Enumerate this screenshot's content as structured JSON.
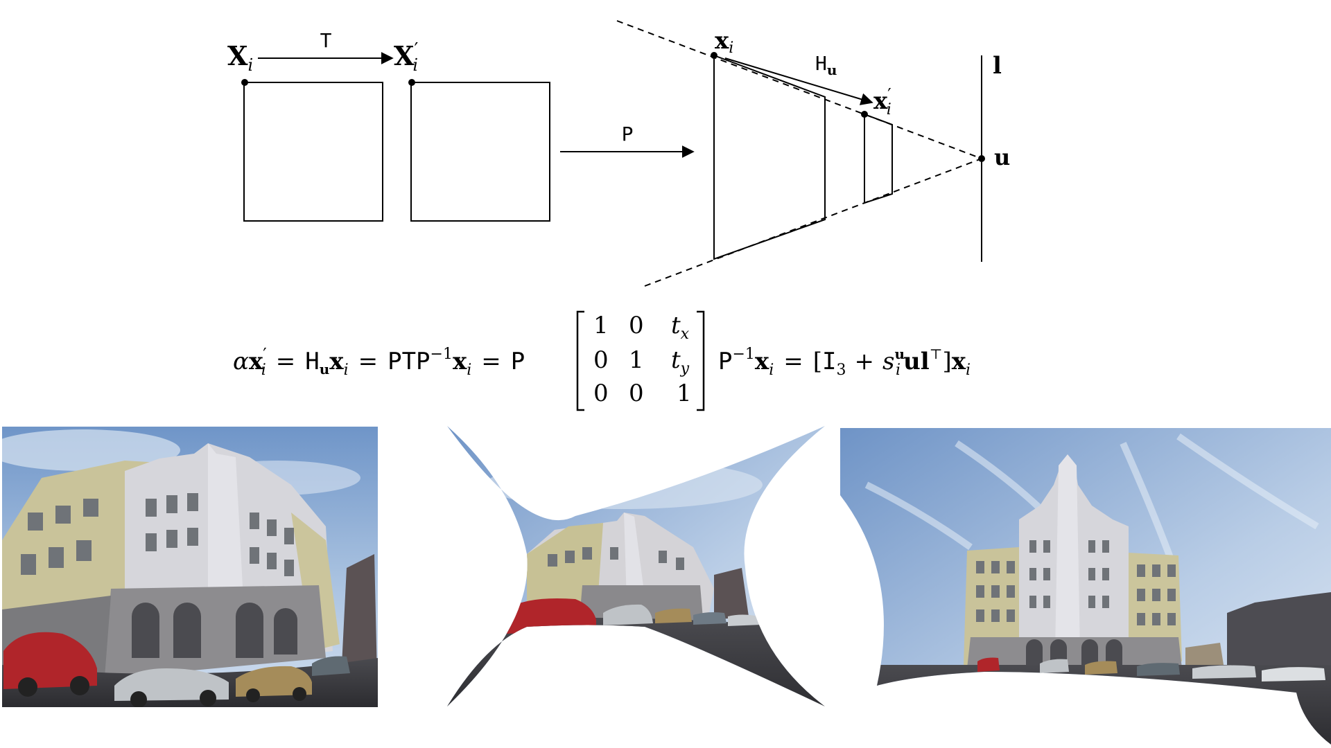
{
  "diagram": {
    "square_left_top_label": {
      "base": "X",
      "sub": "i"
    },
    "square_right_top_label": {
      "base": "X",
      "prime": "′",
      "sub": "i"
    },
    "translation_label": "T",
    "projection_label": "P",
    "trapezoid_top_label": {
      "base": "x",
      "sub": "i"
    },
    "homography_label": {
      "base": "H",
      "sub": "u"
    },
    "small_trapezoid_label": {
      "base": "x",
      "prime": "′",
      "sub": "i"
    },
    "vanishing_line_label": "l",
    "vanishing_point_label": "u"
  },
  "equation": {
    "lhs": [
      "α",
      "x",
      "′",
      "i"
    ],
    "eq1": "=",
    "h": "H",
    "h_sub": "u",
    "x1": "x",
    "x1_sub": "i",
    "eq2": "=",
    "ptp": "PTP",
    "ptp_sup": "−1",
    "x2": "x",
    "x2_sub": "i",
    "eq3": "=",
    "p": "P",
    "matrix": [
      [
        "1",
        "0",
        "t",
        "x"
      ],
      [
        "0",
        "1",
        "t",
        "y"
      ],
      [
        "0",
        "0",
        "1",
        ""
      ]
    ],
    "pinv": "P",
    "pinv_sup": "−1",
    "x3": "x",
    "x3_sub": "i",
    "eq4": "=",
    "bracket_open": "[",
    "identity": "I",
    "identity_sub": "3",
    "plus": "+",
    "s": "s",
    "s_sup": "u",
    "s_sub": "i",
    "ul": "ul",
    "ul_sup": "⊤",
    "bracket_close": "]",
    "x4": "x",
    "x4_sub": "i"
  },
  "colors": {
    "sky_light": "#c9d8ea",
    "sky_mid": "#8fb0d4",
    "sky_dark": "#5d84b8",
    "facade_white": "#d6d6db",
    "facade_grey": "#8d8c8f",
    "facade_yellow": "#c9c39a",
    "ground": "#3a3a3e",
    "car_red": "#b0252a",
    "car_silver": "#bfc3c7",
    "car_gold": "#a58c5a"
  }
}
